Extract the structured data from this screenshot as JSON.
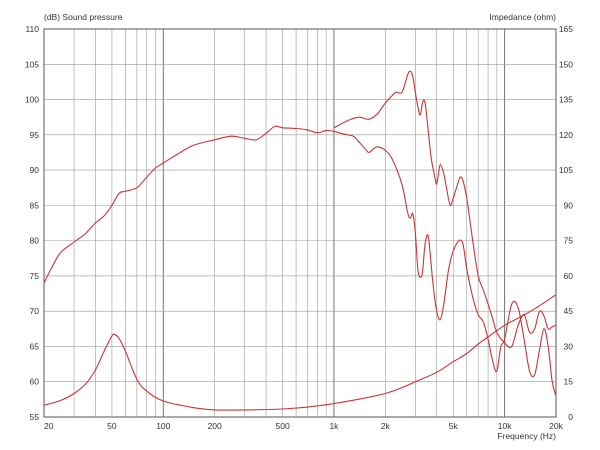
{
  "chart_data": {
    "type": "line",
    "title": "",
    "left_axis_label": "(dB)  Sound pressure",
    "right_axis_label": "Impedance  (ohm)",
    "xlabel": "Frequency  (Hz)",
    "x_scale": "log",
    "xlim": [
      20,
      20000
    ],
    "ylim_left": [
      55,
      110
    ],
    "ylim_right": [
      0,
      165
    ],
    "grid": true,
    "line_color": "#cc3333",
    "x_ticks": [
      {
        "value": 20,
        "label": "20"
      },
      {
        "value": 50,
        "label": "50"
      },
      {
        "value": 100,
        "label": "100"
      },
      {
        "value": 200,
        "label": "200"
      },
      {
        "value": 500,
        "label": "500"
      },
      {
        "value": 1000,
        "label": "1k"
      },
      {
        "value": 2000,
        "label": "2k"
      },
      {
        "value": 5000,
        "label": "5k"
      },
      {
        "value": 10000,
        "label": "10k"
      },
      {
        "value": 20000,
        "label": "20k"
      }
    ],
    "y_left_ticks": [
      "55",
      "60",
      "65",
      "70",
      "75",
      "80",
      "85",
      "90",
      "95",
      "100",
      "105",
      "110"
    ],
    "y_right_ticks": [
      "0",
      "15",
      "30",
      "45",
      "60",
      "75",
      "90",
      "105",
      "120",
      "135",
      "150",
      "165"
    ],
    "series": [
      {
        "axis": "left",
        "points": [
          [
            20,
            74
          ],
          [
            22,
            76
          ],
          [
            25,
            78.3
          ],
          [
            30,
            79.8
          ],
          [
            35,
            81
          ],
          [
            40,
            82.5
          ],
          [
            45,
            83.5
          ],
          [
            50,
            85
          ],
          [
            55,
            86.7
          ],
          [
            60,
            87
          ],
          [
            70,
            87.5
          ],
          [
            80,
            89
          ],
          [
            90,
            90.3
          ],
          [
            100,
            91
          ],
          [
            120,
            92.2
          ],
          [
            150,
            93.5
          ],
          [
            200,
            94.3
          ],
          [
            250,
            94.8
          ],
          [
            300,
            94.5
          ],
          [
            350,
            94.3
          ],
          [
            400,
            95.2
          ],
          [
            450,
            96.2
          ],
          [
            500,
            96
          ],
          [
            600,
            95.9
          ],
          [
            700,
            95.7
          ],
          [
            800,
            95.3
          ],
          [
            900,
            95.6
          ],
          [
            1000,
            95.5
          ],
          [
            1100,
            95.2
          ],
          [
            1200,
            95
          ],
          [
            1300,
            94.8
          ],
          [
            1400,
            94
          ],
          [
            1500,
            93.2
          ],
          [
            1600,
            92.5
          ],
          [
            1700,
            93
          ],
          [
            1800,
            93.3
          ],
          [
            2000,
            92.8
          ],
          [
            2200,
            91.5
          ],
          [
            2500,
            88
          ],
          [
            2700,
            84
          ],
          [
            2800,
            83.2
          ],
          [
            2900,
            83.8
          ],
          [
            3000,
            81
          ],
          [
            3100,
            76
          ],
          [
            3200,
            74.8
          ],
          [
            3300,
            75.5
          ],
          [
            3400,
            79
          ],
          [
            3500,
            80.7
          ],
          [
            3600,
            80
          ],
          [
            3800,
            74
          ],
          [
            4000,
            70
          ],
          [
            4200,
            68.8
          ],
          [
            4400,
            71
          ],
          [
            4700,
            76
          ],
          [
            5000,
            78.5
          ],
          [
            5400,
            80
          ],
          [
            5700,
            79.5
          ],
          [
            6000,
            76
          ],
          [
            6500,
            72
          ],
          [
            7000,
            69.5
          ],
          [
            7500,
            68.5
          ],
          [
            8000,
            66
          ],
          [
            8500,
            63
          ],
          [
            9000,
            61.5
          ],
          [
            9500,
            65
          ],
          [
            10000,
            66
          ],
          [
            11000,
            71
          ],
          [
            12000,
            70.5
          ],
          [
            13000,
            66
          ],
          [
            14000,
            61.5
          ],
          [
            15000,
            61
          ],
          [
            16000,
            64.5
          ],
          [
            17000,
            67.5
          ],
          [
            18000,
            65
          ],
          [
            19000,
            60
          ],
          [
            20000,
            58
          ]
        ]
      },
      {
        "axis": "left",
        "points": [
          [
            1000,
            96
          ],
          [
            1200,
            97
          ],
          [
            1400,
            97.5
          ],
          [
            1600,
            97.2
          ],
          [
            1800,
            98
          ],
          [
            2000,
            99.5
          ],
          [
            2300,
            101
          ],
          [
            2500,
            101
          ],
          [
            2700,
            103.5
          ],
          [
            2800,
            104
          ],
          [
            2900,
            103.2
          ],
          [
            3000,
            101
          ],
          [
            3100,
            99
          ],
          [
            3200,
            97.8
          ],
          [
            3300,
            99.5
          ],
          [
            3400,
            99.8
          ],
          [
            3500,
            97.5
          ],
          [
            3700,
            92
          ],
          [
            3900,
            89
          ],
          [
            4000,
            88
          ],
          [
            4100,
            89.5
          ],
          [
            4200,
            90.8
          ],
          [
            4400,
            89.5
          ],
          [
            4600,
            87
          ],
          [
            4800,
            85
          ],
          [
            5000,
            86
          ],
          [
            5300,
            88
          ],
          [
            5500,
            89
          ],
          [
            5700,
            88.5
          ],
          [
            6000,
            86
          ],
          [
            6500,
            80
          ],
          [
            7000,
            75
          ],
          [
            7500,
            73
          ],
          [
            8000,
            71
          ],
          [
            8500,
            69
          ],
          [
            9000,
            67
          ],
          [
            10000,
            65.5
          ],
          [
            11000,
            65
          ],
          [
            12000,
            68
          ],
          [
            13000,
            69.5
          ],
          [
            14000,
            67
          ],
          [
            15000,
            67.5
          ],
          [
            16000,
            70
          ],
          [
            17000,
            69.3
          ],
          [
            18000,
            67.5
          ],
          [
            19000,
            67.8
          ],
          [
            20000,
            68
          ]
        ]
      },
      {
        "axis": "right",
        "points": [
          [
            20,
            5
          ],
          [
            25,
            7
          ],
          [
            30,
            10
          ],
          [
            35,
            14
          ],
          [
            40,
            20
          ],
          [
            45,
            28
          ],
          [
            50,
            34.5
          ],
          [
            52,
            35
          ],
          [
            55,
            33.5
          ],
          [
            60,
            28
          ],
          [
            70,
            16
          ],
          [
            80,
            11
          ],
          [
            100,
            6.8
          ],
          [
            150,
            4
          ],
          [
            200,
            3
          ],
          [
            300,
            3
          ],
          [
            500,
            3.4
          ],
          [
            700,
            4.2
          ],
          [
            1000,
            5.7
          ],
          [
            1500,
            8
          ],
          [
            2000,
            10
          ],
          [
            2500,
            12.5
          ],
          [
            3000,
            15
          ],
          [
            4000,
            19
          ],
          [
            5000,
            23.5
          ],
          [
            6000,
            27
          ],
          [
            7000,
            31
          ],
          [
            8000,
            34
          ],
          [
            10000,
            39
          ],
          [
            12000,
            42
          ],
          [
            15000,
            46
          ],
          [
            20000,
            52
          ]
        ]
      }
    ]
  }
}
